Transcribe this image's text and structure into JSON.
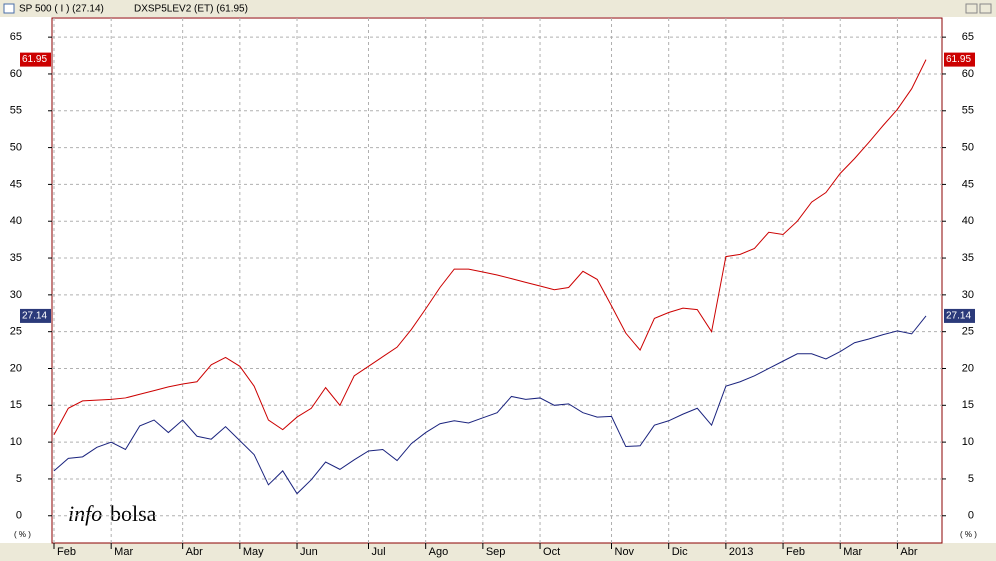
{
  "chart_data": {
    "type": "line",
    "legend": [
      "SP 500 ( I ) (27.14)",
      "DXSP5LEV2 (ET) (61.95)"
    ],
    "y_unit": "( % )",
    "watermark": [
      "info",
      "bolsa"
    ],
    "categories": [
      "Feb",
      null,
      null,
      null,
      "Mar",
      null,
      null,
      null,
      null,
      "Abr",
      null,
      null,
      null,
      "May",
      null,
      null,
      null,
      "Jun",
      null,
      null,
      null,
      null,
      "Jul",
      null,
      null,
      null,
      "Ago",
      null,
      null,
      null,
      "Sep",
      null,
      null,
      null,
      "Oct",
      null,
      null,
      null,
      null,
      "Nov",
      null,
      null,
      null,
      "Dic",
      null,
      null,
      null,
      "2013",
      null,
      null,
      null,
      "Feb",
      null,
      null,
      null,
      "Mar",
      null,
      null,
      null,
      "Abr",
      null,
      null
    ],
    "series": [
      {
        "name": "SP 500 ( I ) (27.14)",
        "color": "#1a237e",
        "values": [
          6.1,
          7.8,
          8.0,
          9.3,
          10.0,
          9.0,
          12.2,
          13.0,
          11.3,
          13.0,
          10.8,
          10.4,
          12.1,
          10.2,
          8.3,
          4.2,
          6.1,
          3.0,
          4.9,
          7.3,
          6.3,
          7.6,
          8.8,
          9.0,
          7.5,
          9.8,
          11.3,
          12.5,
          12.9,
          12.6,
          13.3,
          14.0,
          16.2,
          15.8,
          16.0,
          15.0,
          15.2,
          14.0,
          13.4,
          13.5,
          9.4,
          9.5,
          12.3,
          12.9,
          13.8,
          14.6,
          12.3,
          17.6,
          18.2,
          19.0,
          20.0,
          21.0,
          22.0,
          22.0,
          21.3,
          22.3,
          23.5,
          24.0,
          24.6,
          25.1,
          24.7,
          27.14
        ],
        "value_label_color": "#2b3a7a"
      },
      {
        "name": "DXSP5LEV2 (ET) (61.95)",
        "color": "#cc0000",
        "values": [
          11.0,
          14.6,
          15.6,
          15.7,
          15.8,
          16.0,
          16.5,
          17.0,
          17.5,
          17.9,
          18.2,
          20.5,
          21.5,
          20.3,
          17.6,
          13.0,
          11.7,
          13.4,
          14.6,
          17.4,
          15.0,
          19.0,
          20.3,
          21.6,
          22.9,
          25.3,
          28.1,
          31.0,
          33.5,
          33.5,
          33.1,
          32.7,
          32.2,
          31.7,
          31.2,
          30.7,
          31.0,
          33.2,
          32.1,
          28.5,
          24.8,
          22.5,
          26.8,
          27.6,
          28.2,
          28.0,
          25.0,
          35.2,
          35.5,
          36.3,
          38.5,
          38.2,
          40.0,
          42.6,
          43.9,
          46.5,
          48.5,
          50.7,
          53.0,
          55.2,
          58.0,
          61.95
        ],
        "value_label_color": "#cc0000"
      }
    ],
    "ylim": [
      -3.7,
      67.6
    ],
    "yticks": [
      0,
      5,
      10,
      15,
      20,
      25,
      30,
      35,
      40,
      45,
      50,
      55,
      60,
      65
    ],
    "grid": true
  }
}
